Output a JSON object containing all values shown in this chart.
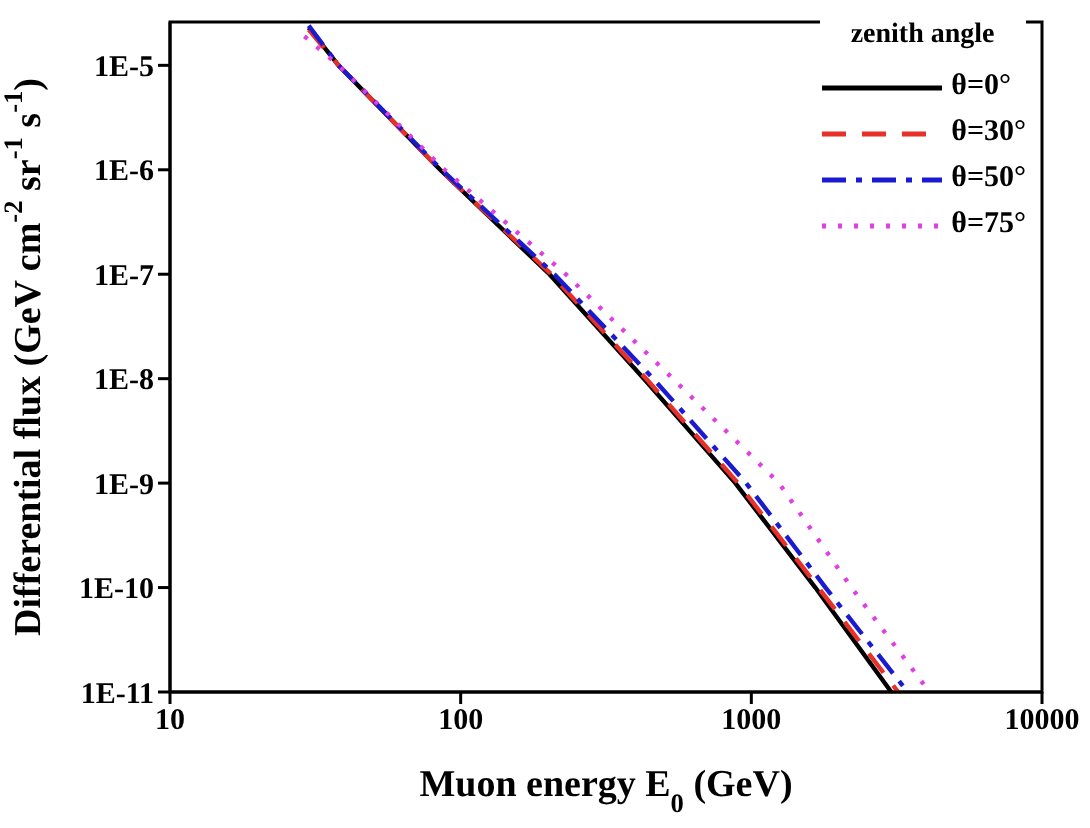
{
  "chart_data": {
    "type": "line",
    "xlabel": "Muon energy E$_{0}$ (GeV)",
    "ylabel": "Differential flux (GeV cm$^{-2}$ sr$^{-1}$ s$^{-1}$)",
    "legend_title": "zenith angle",
    "log": "xy",
    "xlim": [
      10,
      10000
    ],
    "xticks": [
      10,
      100,
      1000,
      10000
    ],
    "ylim": [
      1e-11,
      2.6e-05
    ],
    "yticks": [
      {
        "value": 1e-11,
        "label": "1E-11"
      },
      {
        "value": 1e-10,
        "label": "1E-10"
      },
      {
        "value": 1e-09,
        "label": "1E-9"
      },
      {
        "value": 1e-08,
        "label": "1E-8"
      },
      {
        "value": 1e-07,
        "label": "1E-7"
      },
      {
        "value": 1e-06,
        "label": "1E-6"
      },
      {
        "value": 1e-05,
        "label": "1E-5"
      }
    ],
    "grid": false,
    "legend": "top right",
    "marker": "none",
    "series": [
      {
        "name": "θ=0°",
        "color": "#000000",
        "line_style": "solid",
        "x": [
          30,
          38,
          85,
          202,
          427,
          881,
          1660,
          3030
        ],
        "values": [
          2.3e-05,
          1e-05,
          1e-06,
          1e-07,
          1e-08,
          1e-09,
          1e-10,
          1e-11
        ]
      },
      {
        "name": "θ=30°",
        "color": "#e8302a",
        "line_style": "dashed",
        "x": [
          30,
          38,
          85,
          205,
          435,
          900,
          1700,
          3200
        ],
        "values": [
          2.2e-05,
          1e-05,
          1e-06,
          1e-07,
          1e-08,
          1e-09,
          1e-10,
          1e-11
        ]
      },
      {
        "name": "θ=50°",
        "color": "#1a1ad0",
        "line_style": "dashdot",
        "x": [
          30,
          38,
          86,
          210,
          460,
          960,
          1800,
          3450
        ],
        "values": [
          2.4e-05,
          1e-05,
          1e-06,
          1e-07,
          1e-08,
          1e-09,
          1e-10,
          1e-11
        ]
      },
      {
        "name": "θ=75°",
        "color": "#e040e0",
        "line_style": "dotted",
        "x": [
          29,
          38,
          88,
          230,
          537,
          1245,
          2210,
          4100
        ],
        "values": [
          1.9e-05,
          1e-05,
          1e-06,
          1e-07,
          1e-08,
          1e-09,
          1e-10,
          1e-11
        ]
      }
    ]
  }
}
